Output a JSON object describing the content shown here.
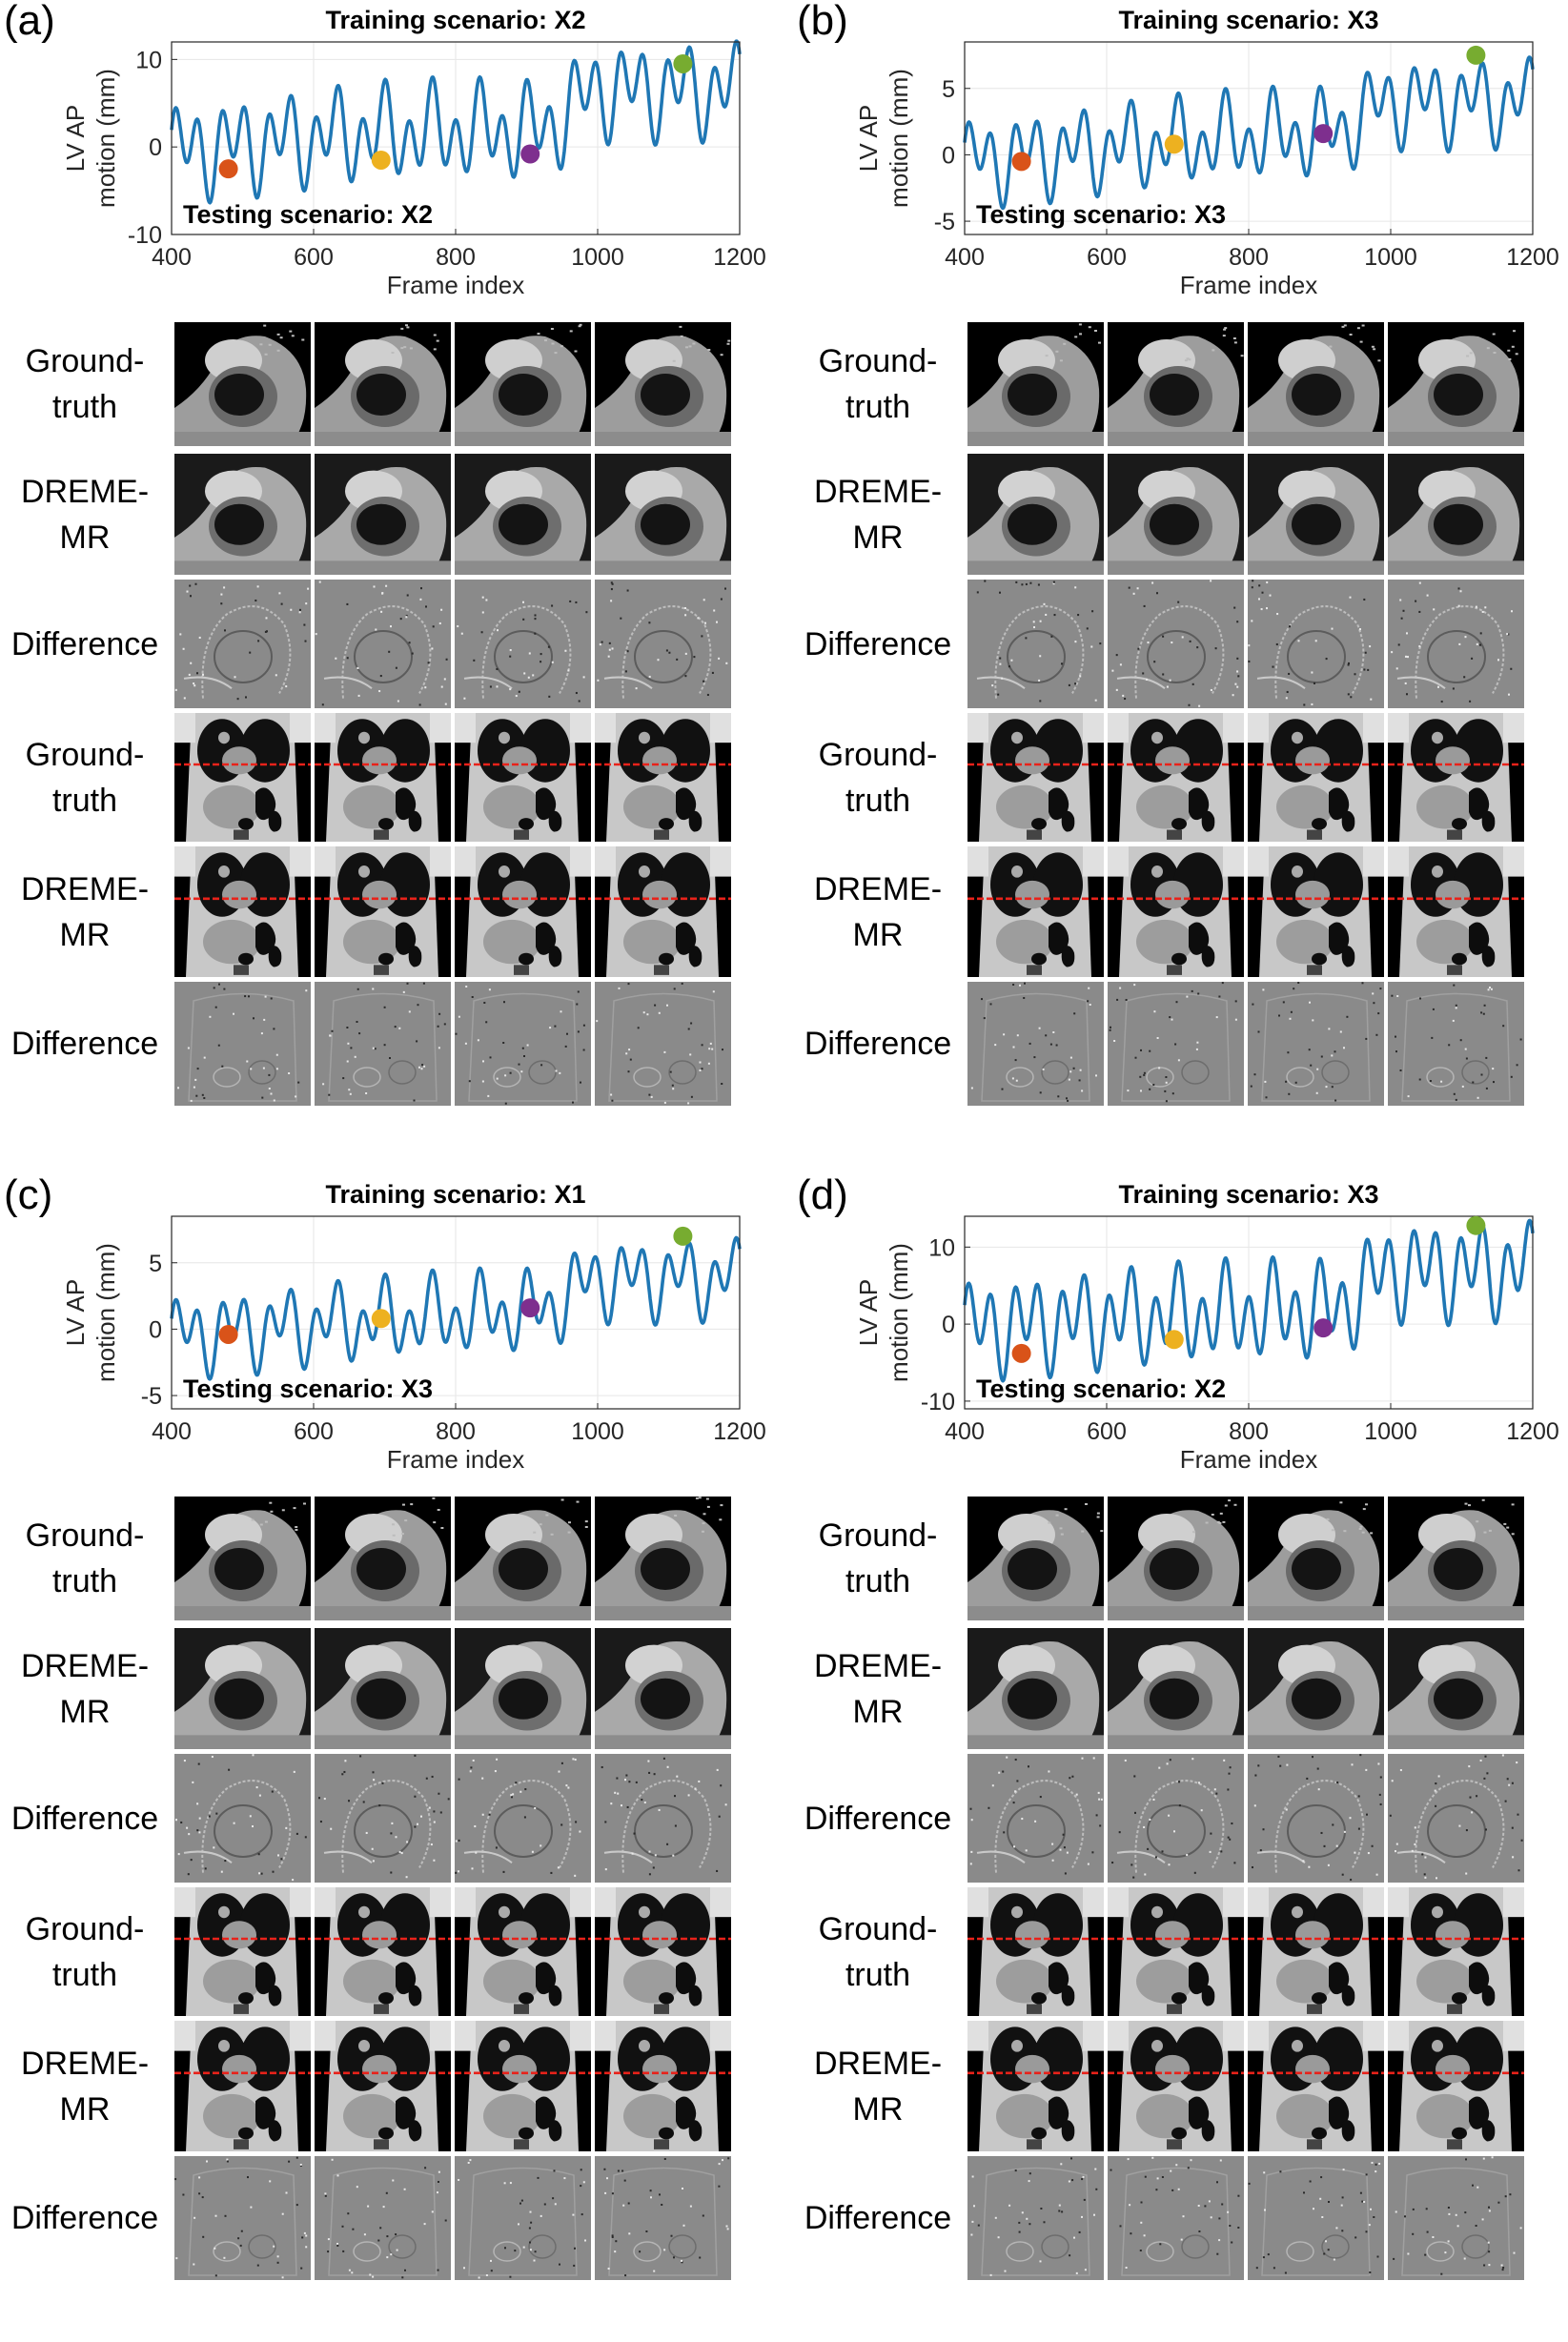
{
  "panels": [
    {
      "letter": "(a)",
      "chart_data": {
        "type": "line",
        "title": "Training scenario: X2",
        "annotation": "Testing scenario: X2",
        "xlabel": "Frame index",
        "ylabel": "LV AP motion (mm)",
        "ylabel_lines": [
          "LV AP",
          "motion (mm)"
        ],
        "xlim": [
          400,
          1200
        ],
        "ylim": [
          -10,
          12
        ],
        "xticks": [
          400,
          600,
          800,
          1000,
          1200
        ],
        "yticks": [
          -10,
          0,
          10
        ],
        "grid": true,
        "series": [
          {
            "color": "#1f77b4",
            "cardiac_amplitude": 3.8,
            "resp_amplitude": 2.5,
            "baseline": [
              -0.5,
              1.5,
              2.0,
              6.5
            ],
            "note": "respiratory-cardiac waveform"
          }
        ],
        "markers": [
          {
            "x": 480,
            "y": -2.5,
            "color": "#d95319"
          },
          {
            "x": 695,
            "y": -1.5,
            "color": "#edb120"
          },
          {
            "x": 905,
            "y": -0.8,
            "color": "#7e2f8e"
          },
          {
            "x": 1120,
            "y": 9.5,
            "color": "#77ac30"
          }
        ]
      }
    },
    {
      "letter": "(b)",
      "chart_data": {
        "type": "line",
        "title": "Training scenario: X3",
        "annotation": "Testing scenario: X3",
        "xlabel": "Frame index",
        "ylabel": "LV AP motion (mm)",
        "ylabel_lines": [
          "LV AP",
          "motion (mm)"
        ],
        "xlim": [
          400,
          1200
        ],
        "ylim": [
          -6,
          8.5
        ],
        "xticks": [
          400,
          600,
          800,
          1000,
          1200
        ],
        "yticks": [
          -5,
          0,
          5
        ],
        "grid": true,
        "series": [
          {
            "color": "#1f77b4",
            "cardiac_amplitude": 2.2,
            "resp_amplitude": 1.6,
            "baseline": [
              -0.5,
              0.8,
              1.8,
              4.0
            ]
          }
        ],
        "markers": [
          {
            "x": 480,
            "y": -0.5,
            "color": "#d95319"
          },
          {
            "x": 695,
            "y": 0.8,
            "color": "#edb120"
          },
          {
            "x": 905,
            "y": 1.6,
            "color": "#7e2f8e"
          },
          {
            "x": 1120,
            "y": 7.5,
            "color": "#77ac30"
          }
        ]
      }
    },
    {
      "letter": "(c)",
      "chart_data": {
        "type": "line",
        "title": "Training scenario: X1",
        "annotation": "Testing scenario: X3",
        "xlabel": "Frame index",
        "ylabel": "LV AP motion (mm)",
        "ylabel_lines": [
          "LV AP",
          "motion (mm)"
        ],
        "xlim": [
          400,
          1200
        ],
        "ylim": [
          -6,
          8.5
        ],
        "xticks": [
          400,
          600,
          800,
          1000,
          1200
        ],
        "yticks": [
          -5,
          0,
          5
        ],
        "grid": true,
        "series": [
          {
            "color": "#1f77b4",
            "cardiac_amplitude": 2.0,
            "resp_amplitude": 1.5,
            "baseline": [
              -0.5,
              0.6,
              1.5,
              3.8
            ]
          }
        ],
        "markers": [
          {
            "x": 480,
            "y": -0.4,
            "color": "#d95319"
          },
          {
            "x": 695,
            "y": 0.8,
            "color": "#edb120"
          },
          {
            "x": 905,
            "y": 1.6,
            "color": "#7e2f8e"
          },
          {
            "x": 1120,
            "y": 7.0,
            "color": "#77ac30"
          }
        ]
      }
    },
    {
      "letter": "(d)",
      "chart_data": {
        "type": "line",
        "title": "Training scenario: X3",
        "annotation": "Testing scenario: X2",
        "xlabel": "Frame index",
        "ylabel": "LV AP motion (mm)",
        "ylabel_lines": [
          "LV AP",
          "motion (mm)"
        ],
        "xlim": [
          400,
          1200
        ],
        "ylim": [
          -11,
          14
        ],
        "xticks": [
          400,
          600,
          800,
          1000,
          1200
        ],
        "yticks": [
          -10,
          0,
          10
        ],
        "grid": true,
        "series": [
          {
            "color": "#1f77b4",
            "cardiac_amplitude": 4.6,
            "resp_amplitude": 2.6,
            "baseline": [
              -0.5,
              1.0,
              2.0,
              7.0
            ]
          }
        ],
        "markers": [
          {
            "x": 480,
            "y": -3.8,
            "color": "#d95319"
          },
          {
            "x": 695,
            "y": -2.0,
            "color": "#edb120"
          },
          {
            "x": 905,
            "y": -0.5,
            "color": "#7e2f8e"
          },
          {
            "x": 1120,
            "y": 12.8,
            "color": "#77ac30"
          }
        ]
      }
    }
  ],
  "row_labels": [
    {
      "kind": "gt",
      "lines": [
        "Ground-",
        "truth"
      ]
    },
    {
      "kind": "pred",
      "lines": [
        "DREME-",
        "MR"
      ]
    },
    {
      "kind": "diff",
      "lines": [
        "Difference"
      ]
    },
    {
      "kind": "gt",
      "lines": [
        "Ground-",
        "truth"
      ]
    },
    {
      "kind": "pred",
      "lines": [
        "DREME-",
        "MR"
      ]
    },
    {
      "kind": "diff",
      "lines": [
        "Difference"
      ]
    }
  ]
}
